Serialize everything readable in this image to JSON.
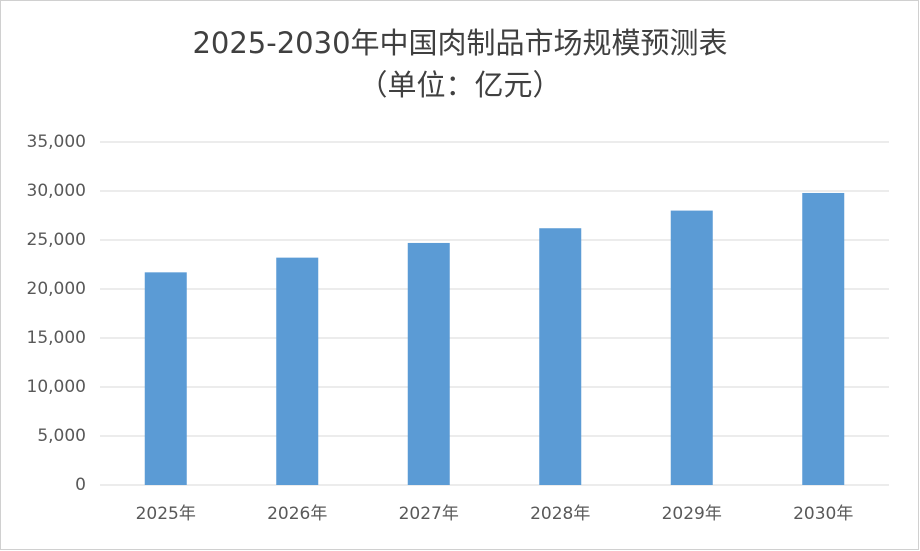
{
  "chart_data": {
    "type": "bar",
    "title": "2025-2030年中国肉制品市场规模预测表",
    "subtitle": "（单位：亿元）",
    "categories": [
      "2025年",
      "2026年",
      "2027年",
      "2028年",
      "2029年",
      "2030年"
    ],
    "values": [
      21700,
      23200,
      24700,
      26200,
      28000,
      29800
    ],
    "color": "#5b9bd5",
    "ylim": [
      0,
      35000
    ],
    "yticks": [
      0,
      {
        "value": 5000,
        "label": "5,000"
      },
      {
        "value": 10000,
        "label": "10,000"
      },
      {
        "value": 15000,
        "label": "15,000"
      },
      {
        "value": 20000,
        "label": "20,000"
      },
      {
        "value": 25000,
        "label": "25,000"
      },
      {
        "value": 30000,
        "label": "30,000"
      },
      {
        "value": 35000,
        "label": "35,000"
      }
    ],
    "grid": true
  }
}
